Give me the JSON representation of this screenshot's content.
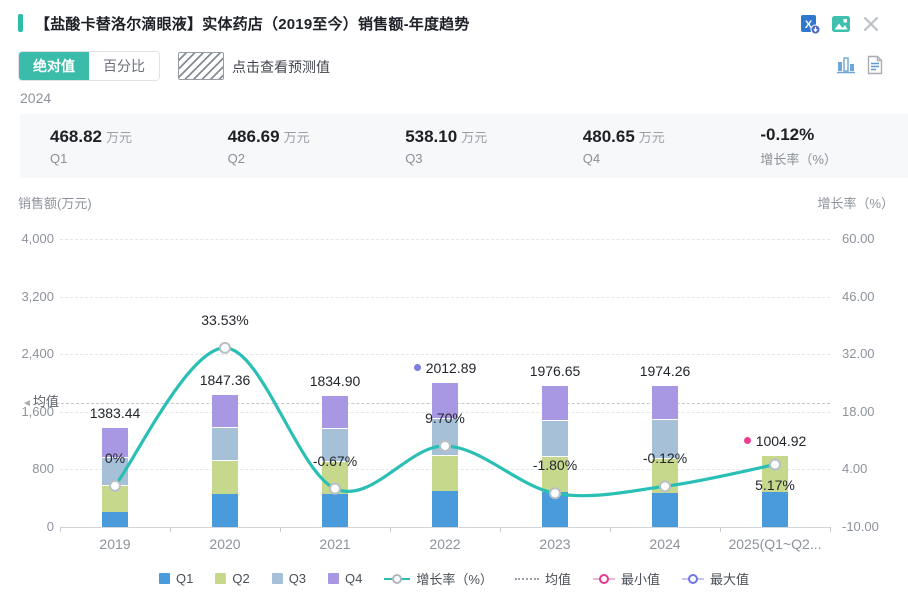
{
  "header": {
    "title": "【盐酸卡替洛尔滴眼液】实体药店（2019至今）销售额-年度趋势"
  },
  "toolbar": {
    "absolute_label": "绝对值",
    "percent_label": "百分比",
    "forecast_hint": "点击查看预测值"
  },
  "period_label": "2024",
  "stats": [
    {
      "value": "468.82",
      "unit": "万元",
      "label": "Q1"
    },
    {
      "value": "486.69",
      "unit": "万元",
      "label": "Q2"
    },
    {
      "value": "538.10",
      "unit": "万元",
      "label": "Q3"
    },
    {
      "value": "480.65",
      "unit": "万元",
      "label": "Q4"
    },
    {
      "value": "-0.12%",
      "unit": "",
      "label": "增长率（%）"
    }
  ],
  "chart_data": {
    "type": "bar",
    "subtype": "stacked-quarter-bars-with-growth-line",
    "title": "销售额-年度趋势",
    "categories": [
      "2019",
      "2020",
      "2021",
      "2022",
      "2023",
      "2024",
      "2025(Q1~Q2..."
    ],
    "series": [
      {
        "name": "Q1",
        "color": "#4a9bdc",
        "values": [
          212.0,
          465.0,
          460.0,
          505.0,
          490.0,
          468.82,
          480.0
        ]
      },
      {
        "name": "Q2",
        "color": "#c5d88c",
        "values": [
          367.0,
          460.0,
          455.0,
          500.0,
          495.0,
          486.69,
          524.92
        ]
      },
      {
        "name": "Q3",
        "color": "#a6c0d8",
        "values": [
          396.0,
          460.0,
          460.0,
          505.0,
          495.0,
          538.1,
          0
        ]
      },
      {
        "name": "Q4",
        "color": "#a897e3",
        "values": [
          408.44,
          462.36,
          459.9,
          502.89,
          496.65,
          480.65,
          0
        ]
      }
    ],
    "totals": [
      1383.44,
      1847.36,
      1834.9,
      2012.89,
      1976.65,
      1974.26,
      1004.92
    ],
    "totals_display": [
      "1383.44",
      "1847.36",
      "1834.90",
      "2012.89",
      "1976.65",
      "1974.26",
      "1004.92"
    ],
    "line": {
      "name": "增长率（%）",
      "color": "#29bfb5",
      "values": [
        0,
        33.53,
        -0.67,
        9.7,
        -1.8,
        -0.12,
        5.17
      ],
      "labels": [
        "0%",
        "33.53%",
        "-0.67%",
        "9.70%",
        "-1.80%",
        "-0.12%",
        "5.17%"
      ]
    },
    "left_axis": {
      "label": "销售额(万元)",
      "ticks": [
        "4,000",
        "3,200",
        "2,400",
        "1,600",
        "800",
        "0"
      ],
      "min": 0,
      "max": 4000
    },
    "right_axis": {
      "label": "增长率（%）",
      "ticks": [
        "60.00",
        "46.00",
        "32.00",
        "18.00",
        "4.00",
        "-10.00"
      ],
      "min": -10,
      "max": 60
    },
    "mean": {
      "label": "均值",
      "value": 1719.2
    },
    "max_point": {
      "index": 3,
      "category": "2022",
      "display": "2012.89",
      "color": "#7b7de2"
    },
    "min_point": {
      "index": 6,
      "category": "2025(Q1~Q2...",
      "display": "1004.92",
      "color": "#ee3d90"
    },
    "grid": true,
    "legend_position": "bottom",
    "legend": [
      {
        "type": "square",
        "color": "#4a9bdc",
        "label": "Q1"
      },
      {
        "type": "square",
        "color": "#c5d88c",
        "label": "Q2"
      },
      {
        "type": "square",
        "color": "#a6c0d8",
        "label": "Q3"
      },
      {
        "type": "square",
        "color": "#a897e3",
        "label": "Q4"
      },
      {
        "type": "line-circle",
        "color": "#29bfb5",
        "label": "增长率（%）"
      },
      {
        "type": "dotted",
        "color": "#9aa0a8",
        "label": "均值"
      },
      {
        "type": "ring",
        "ring": "#e8388f",
        "line": "#e3b9cf",
        "label": "最小值"
      },
      {
        "type": "ring",
        "ring": "#6f76dd",
        "line": "#c3c6ea",
        "label": "最大值"
      }
    ]
  }
}
